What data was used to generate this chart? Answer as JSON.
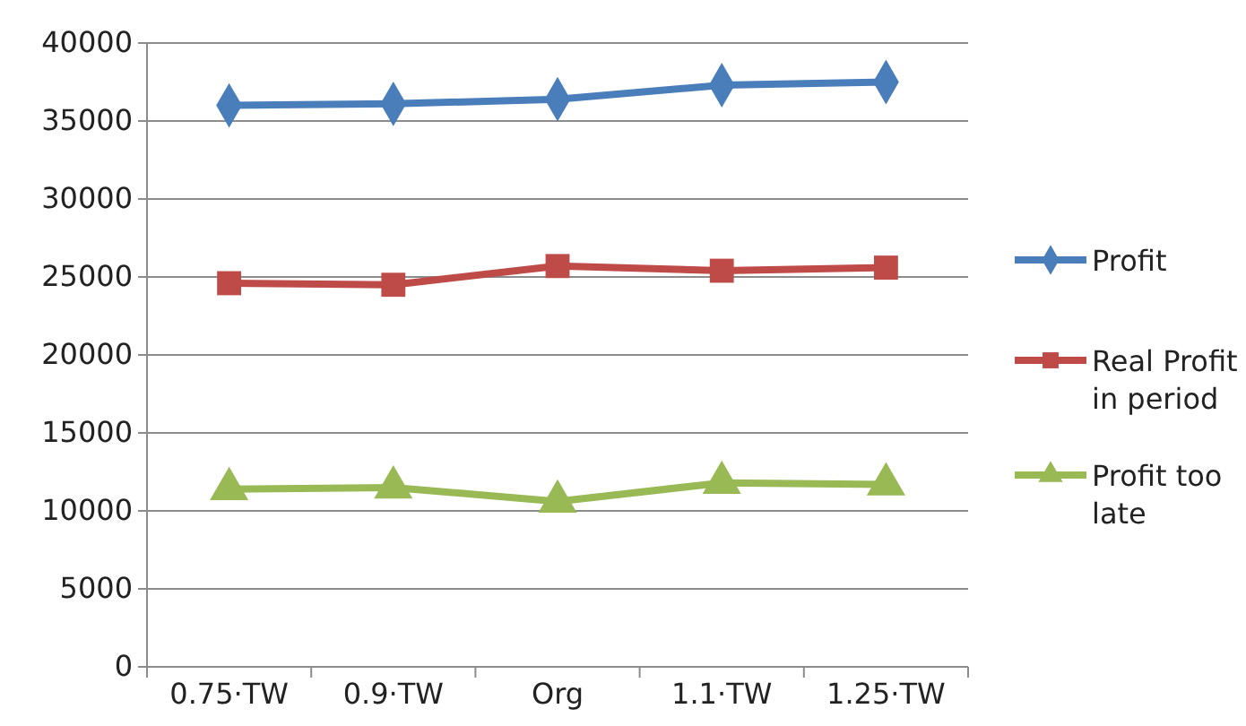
{
  "chart_data": {
    "type": "line",
    "categories": [
      "0.75·TW",
      "0.9·TW",
      "Org",
      "1.1·TW",
      "1.25·TW"
    ],
    "series": [
      {
        "name": "Profit",
        "color": "#4a7ebb",
        "marker": "diamond",
        "values": [
          36000,
          36100,
          36400,
          37300,
          37500
        ]
      },
      {
        "name": "Real Profit in period",
        "color": "#be4b48",
        "marker": "square",
        "values": [
          24600,
          24500,
          25700,
          25400,
          25600
        ]
      },
      {
        "name": "Profit too late",
        "color": "#98b954",
        "marker": "triangle",
        "values": [
          11400,
          11500,
          10600,
          11800,
          11700
        ]
      }
    ],
    "ylim": [
      0,
      40000
    ],
    "yticks": [
      0,
      5000,
      10000,
      15000,
      20000,
      25000,
      30000,
      35000,
      40000
    ],
    "grid": "y",
    "legend": "right"
  }
}
